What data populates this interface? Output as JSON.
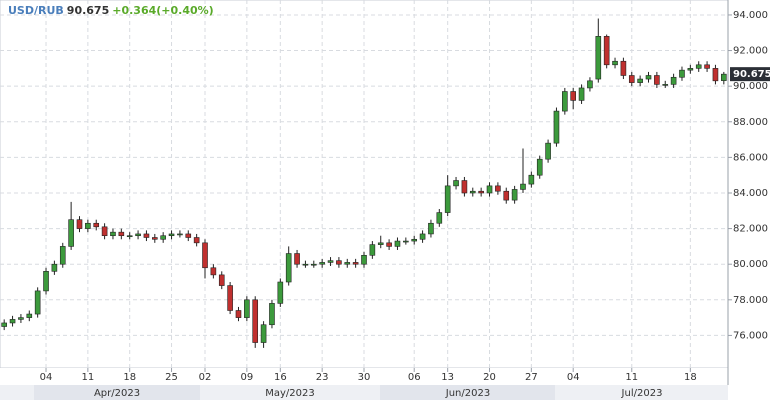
{
  "chart_data": {
    "type": "candlestick",
    "header": {
      "symbol": "USD/RUB",
      "change": "+0.364(+0.40%)"
    },
    "categories": [
      null,
      null,
      null,
      null,
      null,
      "04",
      null,
      null,
      null,
      null,
      "11",
      null,
      null,
      null,
      null,
      "18",
      null,
      null,
      null,
      null,
      "25",
      null,
      null,
      null,
      "02",
      null,
      null,
      null,
      null,
      "09",
      null,
      null,
      null,
      "16",
      null,
      null,
      null,
      null,
      "23",
      null,
      null,
      null,
      null,
      "30",
      null,
      null,
      null,
      null,
      null,
      "06",
      null,
      null,
      null,
      "13",
      null,
      null,
      null,
      null,
      "20",
      null,
      null,
      null,
      null,
      "27",
      null,
      null,
      null,
      null,
      "04",
      null,
      null,
      null,
      null,
      null,
      null,
      "11",
      null,
      null,
      null,
      null,
      null,
      null,
      "18",
      null,
      null,
      null,
      null
    ],
    "open": [
      76.5,
      76.7,
      76.9,
      77.0,
      77.2,
      78.5,
      79.6,
      80.0,
      81.0,
      82.5,
      82.0,
      82.3,
      82.1,
      81.6,
      81.8,
      81.6,
      81.6,
      81.7,
      81.5,
      81.4,
      81.6,
      81.7,
      81.7,
      81.5,
      81.2,
      79.8,
      79.4,
      78.8,
      77.4,
      77.0,
      78.0,
      75.6,
      76.6,
      77.8,
      79.0,
      80.6,
      80.0,
      80.0,
      80.0,
      80.1,
      80.2,
      80.0,
      80.1,
      80.0,
      80.5,
      81.1,
      81.2,
      81.0,
      81.3,
      81.3,
      81.4,
      81.7,
      82.3,
      82.9,
      84.4,
      84.7,
      84.0,
      84.1,
      84.0,
      84.4,
      84.1,
      83.6,
      84.2,
      84.5,
      85.0,
      85.9,
      86.8,
      88.6,
      89.7,
      89.2,
      89.9,
      90.4,
      92.8,
      91.2,
      91.4,
      90.6,
      90.2,
      90.4,
      90.6,
      90.1,
      90.1,
      90.5,
      90.9,
      91.0,
      91.2,
      91.0,
      90.311
    ],
    "high": [
      76.9,
      77.1,
      77.2,
      77.4,
      78.7,
      79.8,
      80.2,
      81.2,
      83.5,
      82.7,
      82.5,
      82.5,
      82.3,
      82.0,
      82.0,
      81.8,
      81.9,
      81.9,
      81.7,
      81.8,
      81.9,
      81.9,
      81.9,
      81.7,
      81.4,
      80.0,
      79.6,
      79.0,
      77.6,
      78.2,
      78.2,
      76.8,
      78.0,
      79.2,
      81.0,
      80.8,
      80.2,
      80.2,
      80.3,
      80.4,
      80.4,
      80.3,
      80.3,
      80.7,
      81.3,
      81.6,
      81.4,
      81.5,
      81.5,
      81.6,
      81.9,
      82.5,
      83.1,
      85.0,
      84.9,
      84.9,
      84.3,
      84.3,
      84.6,
      84.6,
      84.3,
      84.4,
      86.5,
      85.2,
      86.1,
      87.0,
      88.8,
      89.9,
      89.9,
      90.1,
      90.5,
      93.8,
      92.9,
      91.6,
      91.6,
      90.8,
      90.6,
      90.8,
      90.8,
      90.3,
      90.7,
      91.1,
      91.2,
      91.4,
      91.4,
      91.2,
      90.8
    ],
    "low": [
      76.3,
      76.5,
      76.7,
      76.8,
      77.0,
      78.3,
      79.4,
      79.8,
      80.8,
      81.8,
      81.8,
      81.9,
      81.4,
      81.4,
      81.4,
      81.4,
      81.4,
      81.3,
      81.2,
      81.2,
      81.4,
      81.5,
      81.3,
      81.0,
      79.2,
      79.2,
      78.6,
      77.2,
      76.8,
      76.8,
      75.3,
      75.3,
      76.4,
      77.6,
      78.8,
      79.8,
      79.8,
      79.8,
      79.8,
      79.9,
      79.8,
      79.8,
      79.8,
      79.8,
      80.3,
      80.9,
      80.8,
      80.8,
      81.1,
      81.1,
      81.2,
      81.5,
      82.1,
      82.7,
      84.2,
      83.8,
      83.8,
      83.8,
      83.8,
      83.9,
      83.4,
      83.4,
      84.0,
      84.3,
      84.8,
      85.7,
      86.6,
      88.4,
      88.7,
      89.0,
      89.7,
      90.2,
      91.0,
      91.0,
      90.4,
      90.0,
      90.0,
      90.2,
      89.9,
      89.9,
      89.9,
      90.3,
      90.7,
      90.8,
      90.8,
      90.1,
      90.1
    ],
    "close": [
      76.7,
      76.9,
      77.0,
      77.2,
      78.5,
      79.6,
      80.0,
      81.0,
      82.5,
      82.0,
      82.3,
      82.1,
      81.6,
      81.8,
      81.6,
      81.6,
      81.7,
      81.5,
      81.4,
      81.6,
      81.7,
      81.7,
      81.5,
      81.2,
      79.8,
      79.4,
      78.8,
      77.4,
      77.0,
      78.0,
      75.6,
      76.6,
      77.8,
      79.0,
      80.6,
      80.0,
      80.0,
      80.0,
      80.1,
      80.2,
      80.0,
      80.1,
      80.0,
      80.5,
      81.1,
      81.2,
      81.0,
      81.3,
      81.3,
      81.4,
      81.7,
      82.3,
      82.9,
      84.4,
      84.7,
      84.0,
      84.1,
      84.0,
      84.4,
      84.1,
      83.6,
      84.2,
      84.5,
      85.0,
      85.9,
      86.8,
      88.6,
      89.7,
      89.2,
      89.9,
      90.3,
      92.8,
      91.2,
      91.4,
      90.6,
      90.2,
      90.4,
      90.6,
      90.1,
      90.1,
      90.5,
      90.9,
      91.0,
      91.2,
      91.0,
      90.3,
      90.675
    ],
    "up_color": "#3c9a3c",
    "down_color": "#c0302f",
    "ylim": [
      74.17,
      94.84
    ],
    "yticks": [
      {
        "value": 76,
        "label": "76.000"
      },
      {
        "value": 78,
        "label": "78.000"
      },
      {
        "value": 80,
        "label": "80.000"
      },
      {
        "value": 82,
        "label": "82.000"
      },
      {
        "value": 84,
        "label": "84.000"
      },
      {
        "value": 86,
        "label": "86.000"
      },
      {
        "value": 88,
        "label": "88.000"
      },
      {
        "value": 90,
        "label": "90.000"
      },
      {
        "value": 92,
        "label": "92.000"
      },
      {
        "value": 94,
        "label": "94.000"
      }
    ],
    "grid": true,
    "month_labels": [
      "Apr/2023",
      "May/2023",
      "Jun/2023",
      "Jul/2023"
    ]
  }
}
